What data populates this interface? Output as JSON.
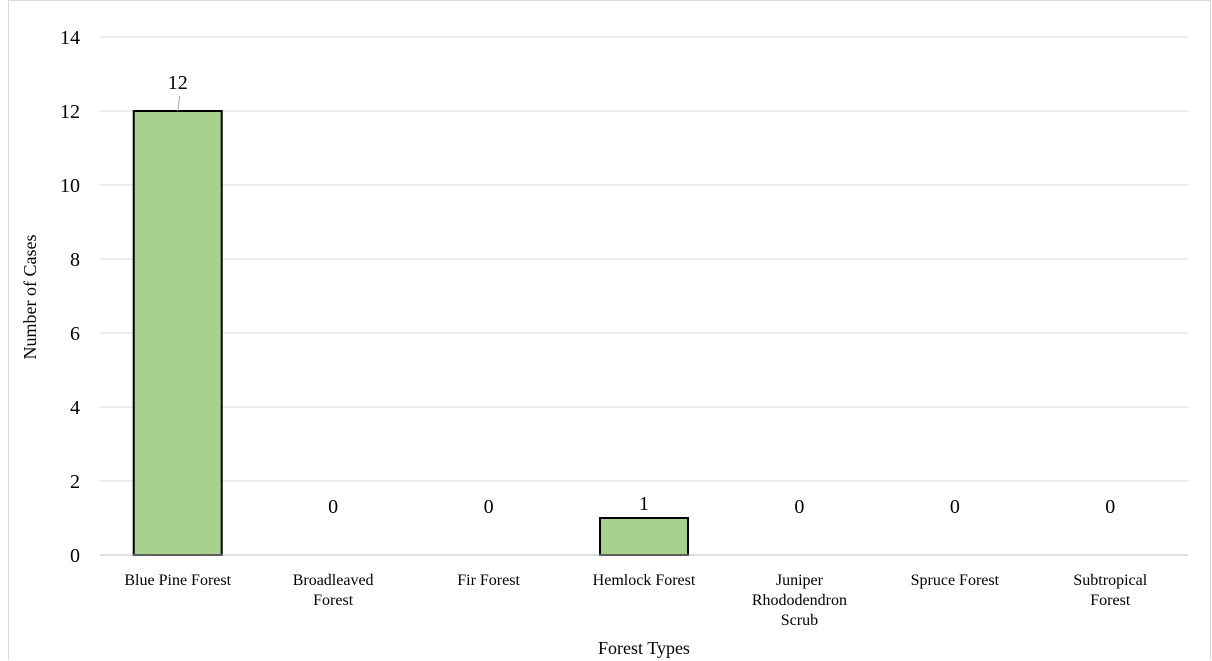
{
  "chart_data": {
    "type": "bar",
    "title": "",
    "xlabel": "Forest Types",
    "ylabel": "Number of Cases",
    "ylim": [
      0,
      14
    ],
    "yticks": [
      0,
      2,
      4,
      6,
      8,
      10,
      12,
      14
    ],
    "grid": true,
    "legend": "none",
    "bar_color": "#a9d18e",
    "categories": [
      [
        "Blue Pine Forest"
      ],
      [
        "Broadleaved",
        "Forest"
      ],
      [
        "Fir Forest"
      ],
      [
        "Hemlock Forest"
      ],
      [
        "Juniper",
        "Rhododendron",
        "Scrub"
      ],
      [
        "Spruce Forest"
      ],
      [
        "Subtropical",
        "Forest"
      ]
    ],
    "values": [
      12,
      0,
      0,
      1,
      0,
      0,
      0
    ],
    "data_labels": [
      "12",
      "0",
      "0",
      "1",
      "0",
      "0",
      "0"
    ]
  }
}
